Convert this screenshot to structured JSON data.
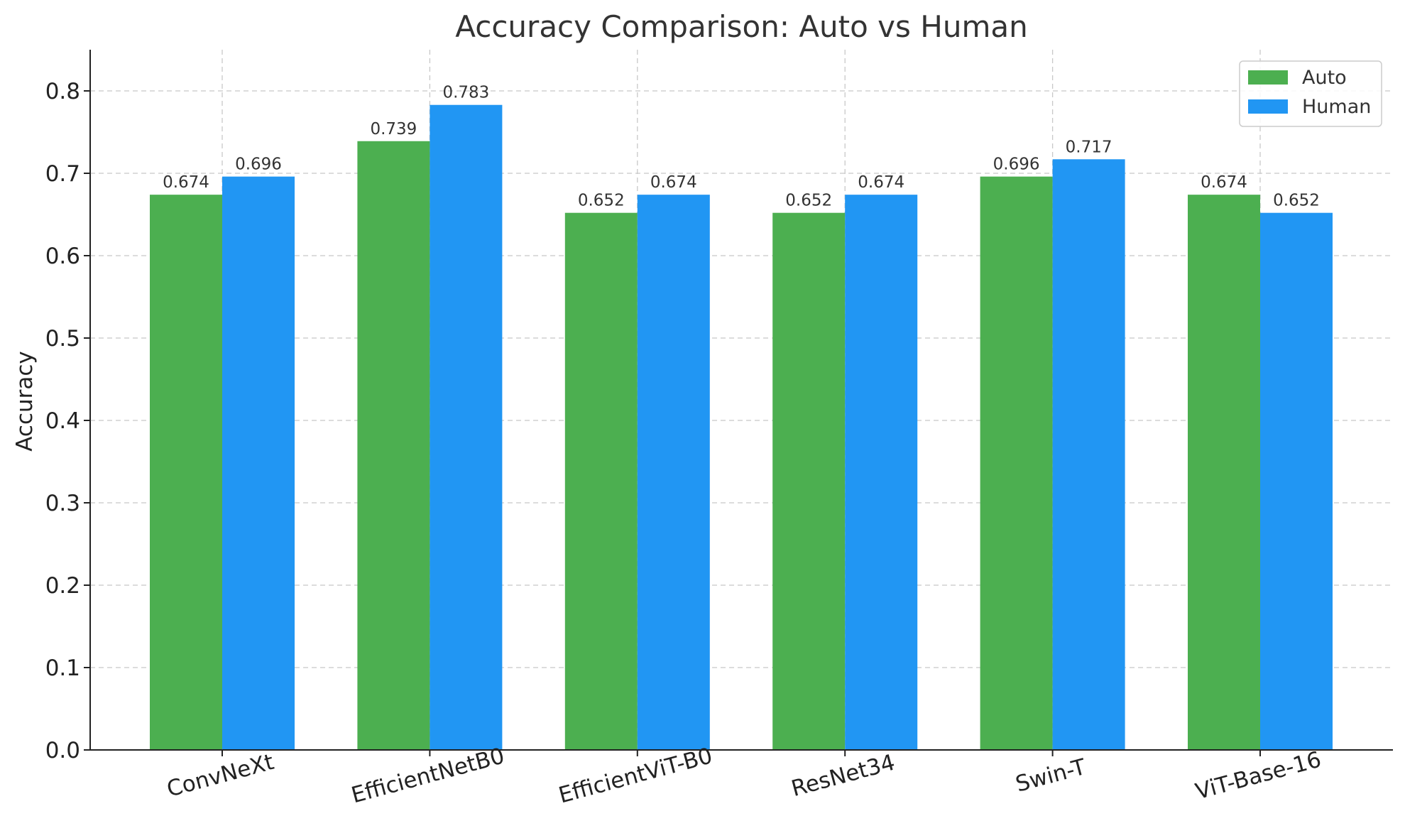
{
  "chart_data": {
    "type": "bar",
    "title": "Accuracy Comparison: Auto vs Human",
    "xlabel": "",
    "ylabel": "Accuracy",
    "ylim": [
      0,
      0.85
    ],
    "yticks": [
      "0.0",
      "0.1",
      "0.2",
      "0.3",
      "0.4",
      "0.5",
      "0.6",
      "0.7",
      "0.8"
    ],
    "categories": [
      "ConvNeXt",
      "EfficientNetB0",
      "EfficientViT-B0",
      "ResNet34",
      "Swin-T",
      "ViT-Base-16"
    ],
    "series": [
      {
        "name": "Auto",
        "color": "#4caf50",
        "values": [
          0.674,
          0.739,
          0.652,
          0.652,
          0.696,
          0.674
        ],
        "labels": [
          "0.674",
          "0.739",
          "0.652",
          "0.652",
          "0.696",
          "0.674"
        ]
      },
      {
        "name": "Human",
        "color": "#2196f3",
        "values": [
          0.696,
          0.783,
          0.674,
          0.674,
          0.717,
          0.652
        ],
        "labels": [
          "0.696",
          "0.783",
          "0.674",
          "0.674",
          "0.717",
          "0.652"
        ]
      }
    ],
    "grid": true,
    "legend_position": "top-right"
  }
}
